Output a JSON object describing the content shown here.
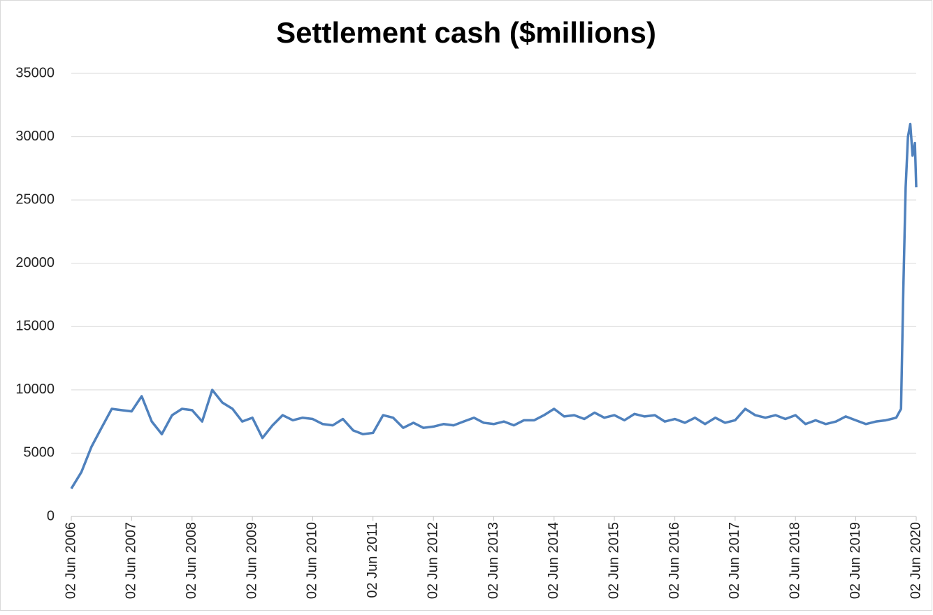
{
  "chart_data": {
    "type": "line",
    "title": "Settlement cash ($millions)",
    "x": [
      "2006-06-02",
      "2006-08-02",
      "2006-10-02",
      "2006-12-02",
      "2007-02-02",
      "2007-04-02",
      "2007-06-02",
      "2007-08-02",
      "2007-10-02",
      "2007-12-02",
      "2008-02-02",
      "2008-04-02",
      "2008-06-02",
      "2008-08-02",
      "2008-10-02",
      "2008-12-02",
      "2009-02-02",
      "2009-04-02",
      "2009-06-02",
      "2009-08-02",
      "2009-10-02",
      "2009-12-02",
      "2010-02-02",
      "2010-04-02",
      "2010-06-02",
      "2010-08-02",
      "2010-10-02",
      "2010-12-02",
      "2011-02-02",
      "2011-04-02",
      "2011-06-02",
      "2011-08-02",
      "2011-10-02",
      "2011-12-02",
      "2012-02-02",
      "2012-04-02",
      "2012-06-02",
      "2012-08-02",
      "2012-10-02",
      "2012-12-02",
      "2013-02-02",
      "2013-04-02",
      "2013-06-02",
      "2013-08-02",
      "2013-10-02",
      "2013-12-02",
      "2014-02-02",
      "2014-04-02",
      "2014-06-02",
      "2014-08-02",
      "2014-10-02",
      "2014-12-02",
      "2015-02-02",
      "2015-04-02",
      "2015-06-02",
      "2015-08-02",
      "2015-10-02",
      "2015-12-02",
      "2016-02-02",
      "2016-04-02",
      "2016-06-02",
      "2016-08-02",
      "2016-10-02",
      "2016-12-02",
      "2017-02-02",
      "2017-04-02",
      "2017-06-02",
      "2017-08-02",
      "2017-10-02",
      "2017-12-02",
      "2018-02-02",
      "2018-04-02",
      "2018-06-02",
      "2018-08-02",
      "2018-10-02",
      "2018-12-02",
      "2019-02-02",
      "2019-04-02",
      "2019-06-02",
      "2019-08-02",
      "2019-10-02",
      "2019-12-02",
      "2020-02-02",
      "2020-03-02",
      "2020-03-16",
      "2020-03-30",
      "2020-04-13",
      "2020-04-27",
      "2020-05-11",
      "2020-05-25",
      "2020-06-02"
    ],
    "series": [
      {
        "name": "Settlement cash",
        "color": "#4f81bd",
        "values": [
          2200,
          3500,
          5500,
          7000,
          8500,
          8400,
          8300,
          9500,
          7500,
          6500,
          8000,
          8500,
          8400,
          7500,
          10000,
          9000,
          8500,
          7500,
          7800,
          6200,
          7200,
          8000,
          7600,
          7800,
          7700,
          7300,
          7200,
          7700,
          6800,
          6500,
          6600,
          8000,
          7800,
          7000,
          7400,
          7000,
          7100,
          7300,
          7200,
          7500,
          7800,
          7400,
          7300,
          7500,
          7200,
          7600,
          7600,
          8000,
          8500,
          7900,
          8000,
          7700,
          8200,
          7800,
          8000,
          7600,
          8100,
          7900,
          8000,
          7500,
          7700,
          7400,
          7800,
          7300,
          7800,
          7400,
          7600,
          8500,
          8000,
          7800,
          8000,
          7700,
          8000,
          7300,
          7600,
          7300,
          7500,
          7900,
          7600,
          7300,
          7500,
          7600,
          7800,
          8500,
          18000,
          26000,
          30000,
          31000,
          28500,
          29500,
          26000
        ]
      }
    ],
    "xlim": [
      "2006-06-02",
      "2020-06-02"
    ],
    "xticks": [
      {
        "value": "2006-06-02",
        "label": "02 Jun 2006"
      },
      {
        "value": "2007-06-02",
        "label": "02 Jun 2007"
      },
      {
        "value": "2008-06-02",
        "label": "02 Jun 2008"
      },
      {
        "value": "2009-06-02",
        "label": "02 Jun 2009"
      },
      {
        "value": "2010-06-02",
        "label": "02 Jun 2010"
      },
      {
        "value": "2011-06-02",
        "label": "02 Jun 2011"
      },
      {
        "value": "2012-06-02",
        "label": "02 Jun 2012"
      },
      {
        "value": "2013-06-02",
        "label": "02 Jun 2013"
      },
      {
        "value": "2014-06-02",
        "label": "02 Jun 2014"
      },
      {
        "value": "2015-06-02",
        "label": "02 Jun 2015"
      },
      {
        "value": "2016-06-02",
        "label": "02 Jun 2016"
      },
      {
        "value": "2017-06-02",
        "label": "02 Jun 2017"
      },
      {
        "value": "2018-06-02",
        "label": "02 Jun 2018"
      },
      {
        "value": "2019-06-02",
        "label": "02 Jun 2019"
      },
      {
        "value": "2020-06-02",
        "label": "02 Jun 2020"
      }
    ],
    "ylim": [
      0,
      35000
    ],
    "yticks": [
      0,
      5000,
      10000,
      15000,
      20000,
      25000,
      30000,
      35000
    ],
    "grid": true
  }
}
